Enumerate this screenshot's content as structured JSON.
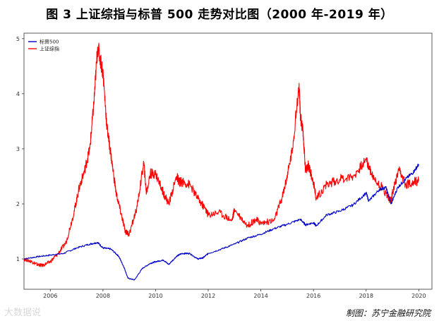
{
  "header": {
    "title": "图 3 上证综指与标普 500 走势对比图（2000 年-2019 年）"
  },
  "footer": {
    "source": "制图：苏宁金融研究院",
    "watermark": "大数据说"
  },
  "chart_data": {
    "type": "line",
    "title": "图 3 上证综指与标普 500 走势对比图（2000 年-2019 年）",
    "xlabel": "",
    "ylabel": "",
    "xlim": [
      2005.0,
      2020.5
    ],
    "ylim": [
      0.45,
      5.1
    ],
    "x_ticks": [
      2006,
      2008,
      2010,
      2012,
      2014,
      2016,
      2018,
      2020
    ],
    "y_ticks": [
      1,
      2,
      3,
      4,
      5
    ],
    "grid": false,
    "legend_position": "top-left",
    "series": [
      {
        "name": "标普500",
        "color": "#0000cc",
        "x": [
          2005.0,
          2005.5,
          2006.0,
          2006.5,
          2007.0,
          2007.5,
          2007.8,
          2008.0,
          2008.3,
          2008.6,
          2008.8,
          2008.95,
          2009.2,
          2009.5,
          2009.8,
          2010.0,
          2010.3,
          2010.5,
          2010.8,
          2011.0,
          2011.3,
          2011.6,
          2011.8,
          2012.0,
          2012.5,
          2013.0,
          2013.5,
          2014.0,
          2014.5,
          2015.0,
          2015.5,
          2015.7,
          2016.0,
          2016.1,
          2016.5,
          2017.0,
          2017.5,
          2018.0,
          2018.1,
          2018.5,
          2018.75,
          2018.95,
          2019.2,
          2019.5,
          2019.8,
          2020.0
        ],
        "y": [
          1.0,
          1.04,
          1.07,
          1.1,
          1.2,
          1.27,
          1.3,
          1.2,
          1.18,
          1.05,
          0.85,
          0.65,
          0.62,
          0.83,
          0.92,
          0.95,
          0.98,
          0.9,
          1.05,
          1.1,
          1.1,
          1.0,
          1.02,
          1.1,
          1.18,
          1.27,
          1.38,
          1.45,
          1.55,
          1.63,
          1.72,
          1.62,
          1.66,
          1.6,
          1.8,
          1.87,
          1.98,
          2.2,
          2.05,
          2.26,
          2.3,
          2.0,
          2.3,
          2.45,
          2.58,
          2.72
        ]
      },
      {
        "name": "上证综指",
        "color": "#ff0000",
        "x": [
          2005.0,
          2005.3,
          2005.5,
          2005.7,
          2006.0,
          2006.3,
          2006.6,
          2006.9,
          2007.1,
          2007.3,
          2007.5,
          2007.65,
          2007.8,
          2008.0,
          2008.15,
          2008.3,
          2008.5,
          2008.7,
          2008.85,
          2009.0,
          2009.3,
          2009.55,
          2009.65,
          2009.8,
          2010.0,
          2010.3,
          2010.5,
          2010.8,
          2010.9,
          2011.0,
          2011.3,
          2011.6,
          2011.9,
          2012.0,
          2012.4,
          2012.9,
          2013.0,
          2013.5,
          2013.8,
          2014.0,
          2014.5,
          2014.8,
          2015.0,
          2015.2,
          2015.45,
          2015.5,
          2015.6,
          2015.7,
          2015.8,
          2016.0,
          2016.1,
          2016.5,
          2017.0,
          2017.5,
          2018.0,
          2018.3,
          2018.6,
          2018.95,
          2019.0,
          2019.25,
          2019.5,
          2019.8,
          2020.0
        ],
        "y": [
          1.0,
          0.95,
          0.9,
          0.88,
          0.95,
          1.1,
          1.3,
          1.85,
          2.3,
          2.6,
          3.0,
          3.8,
          4.85,
          4.4,
          3.4,
          2.9,
          2.2,
          1.8,
          1.5,
          1.45,
          1.95,
          2.75,
          2.2,
          2.55,
          2.55,
          2.2,
          2.0,
          2.5,
          2.4,
          2.4,
          2.35,
          2.1,
          1.9,
          1.8,
          1.85,
          1.7,
          1.9,
          1.6,
          1.72,
          1.65,
          1.7,
          2.1,
          2.5,
          3.0,
          4.15,
          3.6,
          3.3,
          2.6,
          2.7,
          2.4,
          2.1,
          2.35,
          2.45,
          2.5,
          2.8,
          2.45,
          2.3,
          2.05,
          2.2,
          2.6,
          2.35,
          2.4,
          2.42
        ]
      }
    ]
  }
}
